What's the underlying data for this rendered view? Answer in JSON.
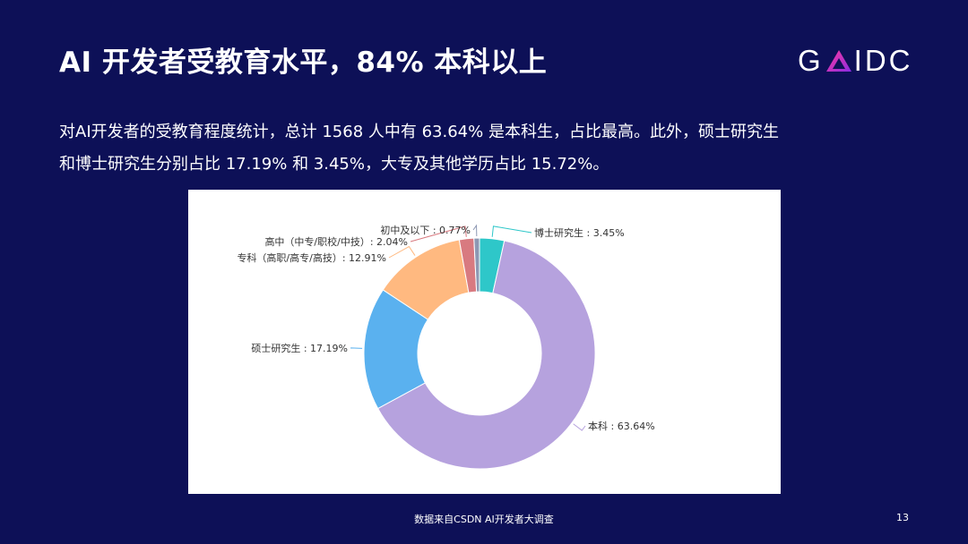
{
  "title": "AI 开发者受教育水平，84% 本科以上",
  "logo": {
    "left": "G",
    "right": "IDC",
    "accent": "#e0218a",
    "accent2": "#7b2ff7"
  },
  "description": {
    "line1": "对AI开发者的受教育程度统计，总计 1568 人中有 63.64% 是本科生，占比最高。此外，硕士研究生",
    "line2": "和博士研究生分别占比 17.19% 和 3.45%，大专及其他学历占比 15.72%。"
  },
  "chart_data": {
    "type": "pie",
    "donut": true,
    "slices": [
      {
        "label": "博士研究生 : 3.45%",
        "value": 3.45,
        "color": "#2ec7c9"
      },
      {
        "label": "本科 : 63.64%",
        "value": 63.64,
        "color": "#b6a2de"
      },
      {
        "label": "硕士研究生 : 17.19%",
        "value": 17.19,
        "color": "#5ab1ef"
      },
      {
        "label": "专科（高职/高专/高技）: 12.91%",
        "value": 12.91,
        "color": "#ffb980"
      },
      {
        "label": "高中（中专/职校/中技）: 2.04%",
        "value": 2.04,
        "color": "#d87a80"
      },
      {
        "label": "初中及以下 : 0.77%",
        "value": 0.77,
        "color": "#8d98b3"
      }
    ]
  },
  "footer": "数据来自CSDN AI开发者大调查",
  "page_number": "13"
}
